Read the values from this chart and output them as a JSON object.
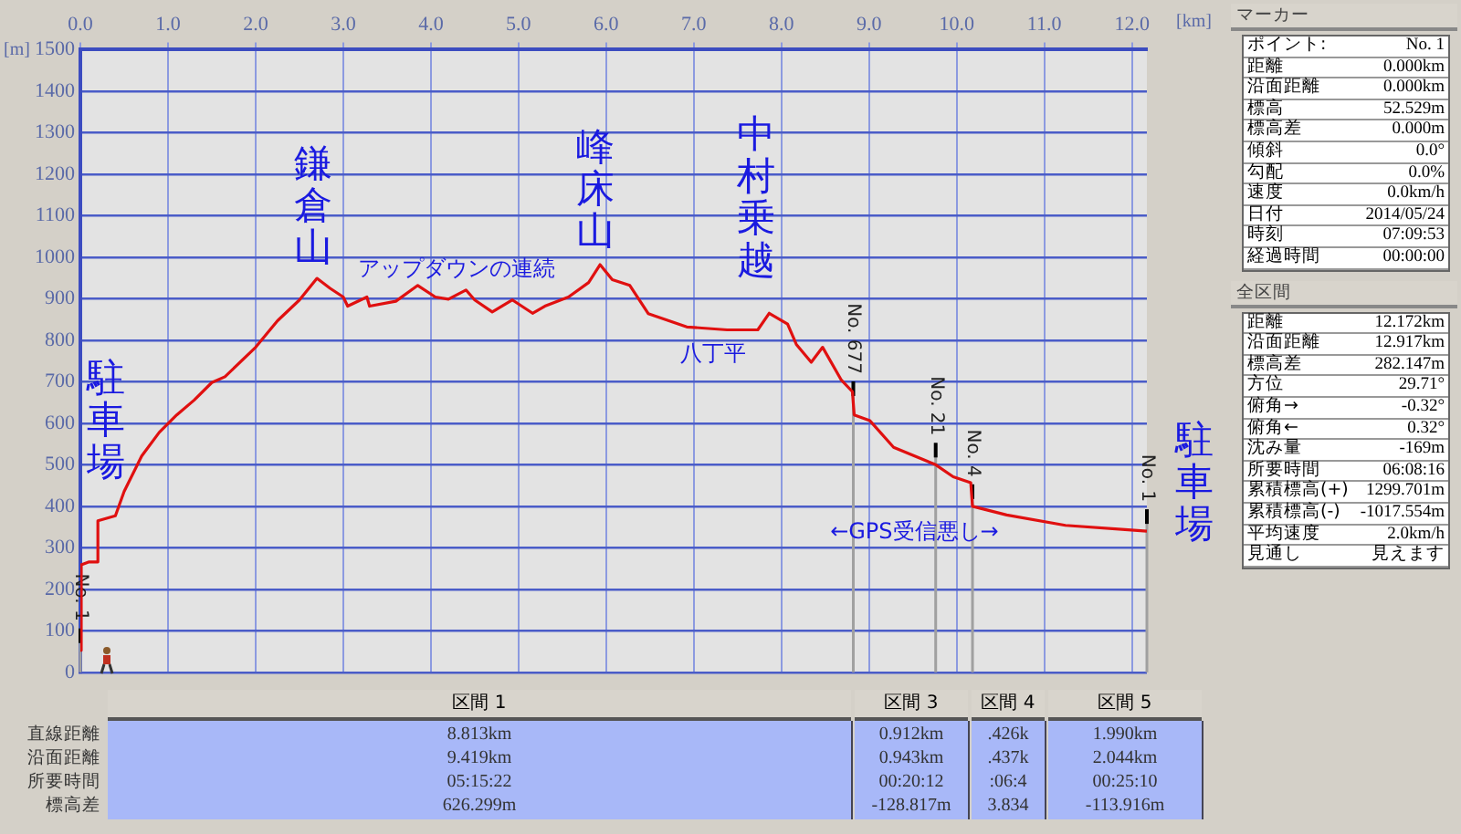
{
  "chart_data": [
    {
      "type": "line",
      "xlabel": "[km]",
      "ylabel": "[m]",
      "x": [
        0,
        0.01,
        0.1,
        0.2,
        0.2,
        0.4,
        0.5,
        0.7,
        0.9,
        1.1,
        1.3,
        1.5,
        1.65,
        2.0,
        2.25,
        2.5,
        2.7,
        2.85,
        3.0,
        3.05,
        3.27,
        3.3,
        3.6,
        3.85,
        4.05,
        4.2,
        4.4,
        4.5,
        4.7,
        4.93,
        5.16,
        5.3,
        5.57,
        5.8,
        5.93,
        6.07,
        6.27,
        6.48,
        6.92,
        7.38,
        7.73,
        7.86,
        8.07,
        8.17,
        8.34,
        8.47,
        8.68,
        8.81,
        8.83,
        9.01,
        9.28,
        9.76,
        9.96,
        10.16,
        10.18,
        10.57,
        11.24,
        11.92,
        12.17
      ],
      "series": [
        {
          "color": "#e01010",
          "values": [
            53,
            259,
            266,
            266,
            365,
            377,
            436,
            521,
            578,
            620,
            656,
            698,
            712,
            783,
            847,
            897,
            949,
            925,
            904,
            882,
            904,
            882,
            894,
            932,
            904,
            899,
            921,
            897,
            868,
            897,
            865,
            882,
            904,
            939,
            982,
            946,
            932,
            864,
            832,
            825,
            825,
            865,
            839,
            790,
            747,
            783,
            705,
            676,
            620,
            606,
            542,
            500,
            471,
            457,
            400,
            379,
            354,
            344,
            340
          ]
        }
      ],
      "xlim": [
        0,
        12.17
      ],
      "xticks": [
        {
          "value": 0,
          "label": "0.0"
        },
        {
          "value": 1,
          "label": "1.0"
        },
        {
          "value": 2,
          "label": "2.0"
        },
        {
          "value": 3,
          "label": "3.0"
        },
        {
          "value": 4,
          "label": "4.0"
        },
        {
          "value": 5,
          "label": "5.0"
        },
        {
          "value": 6,
          "label": "6.0"
        },
        {
          "value": 7,
          "label": "7.0"
        },
        {
          "value": 8,
          "label": "8.0"
        },
        {
          "value": 9,
          "label": "9.0"
        },
        {
          "value": 10,
          "label": "10.0"
        },
        {
          "value": 11,
          "label": "11.0"
        },
        {
          "value": 12,
          "label": "12.0"
        }
      ],
      "ylim": [
        0,
        1500
      ],
      "yticks": [
        0,
        100,
        200,
        300,
        400,
        500,
        600,
        700,
        800,
        900,
        1000,
        1100,
        1200,
        1300,
        1400,
        1500
      ],
      "grid": true,
      "legend": false,
      "marker": "none",
      "line_style": "solid",
      "ref_lines": [
        {
          "axis": "x",
          "value": 0,
          "label": "No. 1",
          "color": "#a0a0a0"
        },
        {
          "axis": "x",
          "value": 8.82,
          "label": "No. 677",
          "color": "#a0a0a0"
        },
        {
          "axis": "x",
          "value": 9.76,
          "label": "No. 21",
          "color": "#a0a0a0"
        },
        {
          "axis": "x",
          "value": 10.18,
          "label": "No. 4",
          "color": "#a0a0a0"
        },
        {
          "axis": "x",
          "value": 12.17,
          "label": "No. 1",
          "color": "#a0a0a0"
        }
      ],
      "annotations": [
        "駐車場",
        "鎌倉山",
        "峰床山",
        "中村乗越",
        "駐車場",
        "アップダウンの連続",
        "八丁平",
        "←GPS受信悪し→"
      ]
    },
    {
      "type": "other",
      "title": "マーカー",
      "annotations": [
        "ポイント:",
        "No. 1",
        "距離",
        "0.000km",
        "沿面距離",
        "0.000km",
        "標高",
        "52.529m",
        "標高差",
        "0.000m",
        "傾斜",
        "0.0°",
        "勾配",
        "0.0%",
        "速度",
        "0.0km/h",
        "日付",
        "2014/05/24",
        "時刻",
        "07:09:53",
        "経過時間",
        "00:00:00"
      ]
    },
    {
      "type": "other",
      "title": "全区間",
      "annotations": [
        "距離",
        "12.172km",
        "沿面距離",
        "12.917km",
        "標高差",
        "282.147m",
        "方位",
        "29.71°",
        "俯角→",
        "-0.32°",
        "俯角←",
        "0.32°",
        "沈み量",
        "-169m",
        "所要時間",
        "06:08:16",
        "累積標高(+)",
        "1299.701m",
        "累積標高(-)",
        "-1017.554m",
        "平均速度",
        "2.0km/h",
        "見通し",
        "見えます"
      ]
    },
    {
      "type": "other",
      "annotations": [
        "区間 1",
        "区間 3",
        "区間 4",
        "区間 5",
        "直線距離",
        "沿面距離",
        "所要時間",
        "標高差",
        "8.813km",
        "0.912km",
        ".426k",
        "1.990km",
        "9.419km",
        "0.943km",
        ".437k",
        "2.044km",
        "05:15:22",
        "00:20:12",
        ":06:4",
        "00:25:10",
        "626.299m",
        "-128.817m",
        "3.834",
        "-113.916m"
      ]
    }
  ]
}
